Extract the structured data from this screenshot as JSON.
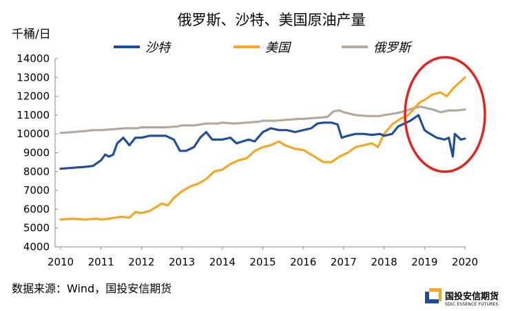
{
  "chart_data": {
    "type": "line",
    "title": "俄罗斯、沙特、美国原油产量",
    "unit_label": "千桶/日",
    "ylim": [
      4000,
      14000
    ],
    "yticks": [
      4000,
      5000,
      6000,
      7000,
      8000,
      9000,
      10000,
      11000,
      12000,
      13000,
      14000
    ],
    "xlim": [
      2010,
      2020
    ],
    "xticks": [
      2010,
      2011,
      2012,
      2013,
      2014,
      2015,
      2016,
      2017,
      2018,
      2019,
      2020
    ],
    "grid": false,
    "legend_position": "top",
    "series": [
      {
        "name": "沙特",
        "color": "#1f4e9c",
        "points": [
          [
            2010.0,
            8150
          ],
          [
            2010.3,
            8200
          ],
          [
            2010.6,
            8250
          ],
          [
            2010.8,
            8300
          ],
          [
            2011.0,
            8600
          ],
          [
            2011.1,
            8900
          ],
          [
            2011.2,
            8800
          ],
          [
            2011.3,
            8900
          ],
          [
            2011.4,
            9500
          ],
          [
            2011.55,
            9800
          ],
          [
            2011.7,
            9400
          ],
          [
            2011.85,
            9800
          ],
          [
            2012.0,
            9800
          ],
          [
            2012.2,
            9900
          ],
          [
            2012.4,
            9900
          ],
          [
            2012.6,
            9900
          ],
          [
            2012.8,
            9700
          ],
          [
            2012.95,
            9100
          ],
          [
            2013.1,
            9100
          ],
          [
            2013.3,
            9300
          ],
          [
            2013.45,
            9800
          ],
          [
            2013.6,
            10100
          ],
          [
            2013.75,
            9700
          ],
          [
            2014.0,
            9700
          ],
          [
            2014.2,
            9800
          ],
          [
            2014.35,
            9500
          ],
          [
            2014.5,
            9600
          ],
          [
            2014.65,
            9700
          ],
          [
            2014.8,
            9600
          ],
          [
            2015.0,
            10100
          ],
          [
            2015.2,
            10300
          ],
          [
            2015.4,
            10200
          ],
          [
            2015.6,
            10200
          ],
          [
            2015.8,
            10100
          ],
          [
            2016.0,
            10200
          ],
          [
            2016.2,
            10300
          ],
          [
            2016.35,
            10550
          ],
          [
            2016.5,
            10600
          ],
          [
            2016.7,
            10600
          ],
          [
            2016.85,
            10500
          ],
          [
            2016.95,
            9800
          ],
          [
            2017.1,
            9900
          ],
          [
            2017.3,
            10000
          ],
          [
            2017.5,
            10000
          ],
          [
            2017.7,
            9950
          ],
          [
            2017.9,
            10000
          ],
          [
            2018.0,
            9900
          ],
          [
            2018.2,
            10000
          ],
          [
            2018.35,
            10400
          ],
          [
            2018.5,
            10550
          ],
          [
            2018.65,
            10700
          ],
          [
            2018.85,
            11000
          ],
          [
            2019.0,
            10200
          ],
          [
            2019.1,
            10050
          ],
          [
            2019.3,
            9800
          ],
          [
            2019.5,
            9700
          ],
          [
            2019.6,
            9800
          ],
          [
            2019.7,
            8800
          ],
          [
            2019.75,
            10000
          ],
          [
            2019.9,
            9700
          ],
          [
            2020.0,
            9750
          ]
        ]
      },
      {
        "name": "美国",
        "color": "#f5a623",
        "points": [
          [
            2010.0,
            5450
          ],
          [
            2010.3,
            5500
          ],
          [
            2010.6,
            5450
          ],
          [
            2010.9,
            5500
          ],
          [
            2011.0,
            5450
          ],
          [
            2011.2,
            5500
          ],
          [
            2011.5,
            5600
          ],
          [
            2011.7,
            5550
          ],
          [
            2011.85,
            5850
          ],
          [
            2012.0,
            5800
          ],
          [
            2012.2,
            5900
          ],
          [
            2012.35,
            6100
          ],
          [
            2012.5,
            6300
          ],
          [
            2012.65,
            6200
          ],
          [
            2012.8,
            6600
          ],
          [
            2013.0,
            6950
          ],
          [
            2013.2,
            7200
          ],
          [
            2013.4,
            7350
          ],
          [
            2013.6,
            7600
          ],
          [
            2013.8,
            8000
          ],
          [
            2014.0,
            8100
          ],
          [
            2014.2,
            8400
          ],
          [
            2014.4,
            8600
          ],
          [
            2014.6,
            8700
          ],
          [
            2014.8,
            9100
          ],
          [
            2015.0,
            9300
          ],
          [
            2015.2,
            9400
          ],
          [
            2015.4,
            9600
          ],
          [
            2015.55,
            9400
          ],
          [
            2015.8,
            9200
          ],
          [
            2016.0,
            9150
          ],
          [
            2016.2,
            8900
          ],
          [
            2016.35,
            8700
          ],
          [
            2016.5,
            8500
          ],
          [
            2016.7,
            8500
          ],
          [
            2016.9,
            8800
          ],
          [
            2017.1,
            9000
          ],
          [
            2017.3,
            9300
          ],
          [
            2017.5,
            9400
          ],
          [
            2017.7,
            9500
          ],
          [
            2017.85,
            9300
          ],
          [
            2018.0,
            10000
          ],
          [
            2018.2,
            10500
          ],
          [
            2018.4,
            10800
          ],
          [
            2018.6,
            11000
          ],
          [
            2018.8,
            11500
          ],
          [
            2018.9,
            11700
          ],
          [
            2019.0,
            11800
          ],
          [
            2019.2,
            12100
          ],
          [
            2019.4,
            12200
          ],
          [
            2019.55,
            12000
          ],
          [
            2019.7,
            12400
          ],
          [
            2019.85,
            12700
          ],
          [
            2020.0,
            13000
          ]
        ]
      },
      {
        "name": "俄罗斯",
        "color": "#b5a89c",
        "points": [
          [
            2010.0,
            10050
          ],
          [
            2010.3,
            10100
          ],
          [
            2010.6,
            10150
          ],
          [
            2010.8,
            10200
          ],
          [
            2011.0,
            10200
          ],
          [
            2011.3,
            10250
          ],
          [
            2011.6,
            10300
          ],
          [
            2011.9,
            10300
          ],
          [
            2012.0,
            10350
          ],
          [
            2012.3,
            10350
          ],
          [
            2012.6,
            10350
          ],
          [
            2012.9,
            10400
          ],
          [
            2013.0,
            10450
          ],
          [
            2013.3,
            10450
          ],
          [
            2013.6,
            10550
          ],
          [
            2013.9,
            10550
          ],
          [
            2014.0,
            10600
          ],
          [
            2014.3,
            10550
          ],
          [
            2014.6,
            10600
          ],
          [
            2014.9,
            10650
          ],
          [
            2015.0,
            10700
          ],
          [
            2015.3,
            10700
          ],
          [
            2015.6,
            10750
          ],
          [
            2015.9,
            10800
          ],
          [
            2016.0,
            10800
          ],
          [
            2016.3,
            10850
          ],
          [
            2016.6,
            10900
          ],
          [
            2016.75,
            11200
          ],
          [
            2016.9,
            11250
          ],
          [
            2017.0,
            11150
          ],
          [
            2017.3,
            11000
          ],
          [
            2017.6,
            10950
          ],
          [
            2017.9,
            10950
          ],
          [
            2018.0,
            11000
          ],
          [
            2018.3,
            11100
          ],
          [
            2018.5,
            11200
          ],
          [
            2018.7,
            11350
          ],
          [
            2018.9,
            11450
          ],
          [
            2019.0,
            11400
          ],
          [
            2019.2,
            11300
          ],
          [
            2019.4,
            11150
          ],
          [
            2019.6,
            11250
          ],
          [
            2019.8,
            11250
          ],
          [
            2020.0,
            11300
          ]
        ]
      }
    ],
    "source": "数据来源：Wind，国投安信期货"
  },
  "logo": {
    "name_cn": "国投安信期货",
    "name_en": "SDIC ESSENCE FUTURES",
    "colors": [
      "#1f4e9c",
      "#f5a623"
    ]
  },
  "annotation": {
    "shape": "ellipse",
    "color": "#e3241b"
  }
}
